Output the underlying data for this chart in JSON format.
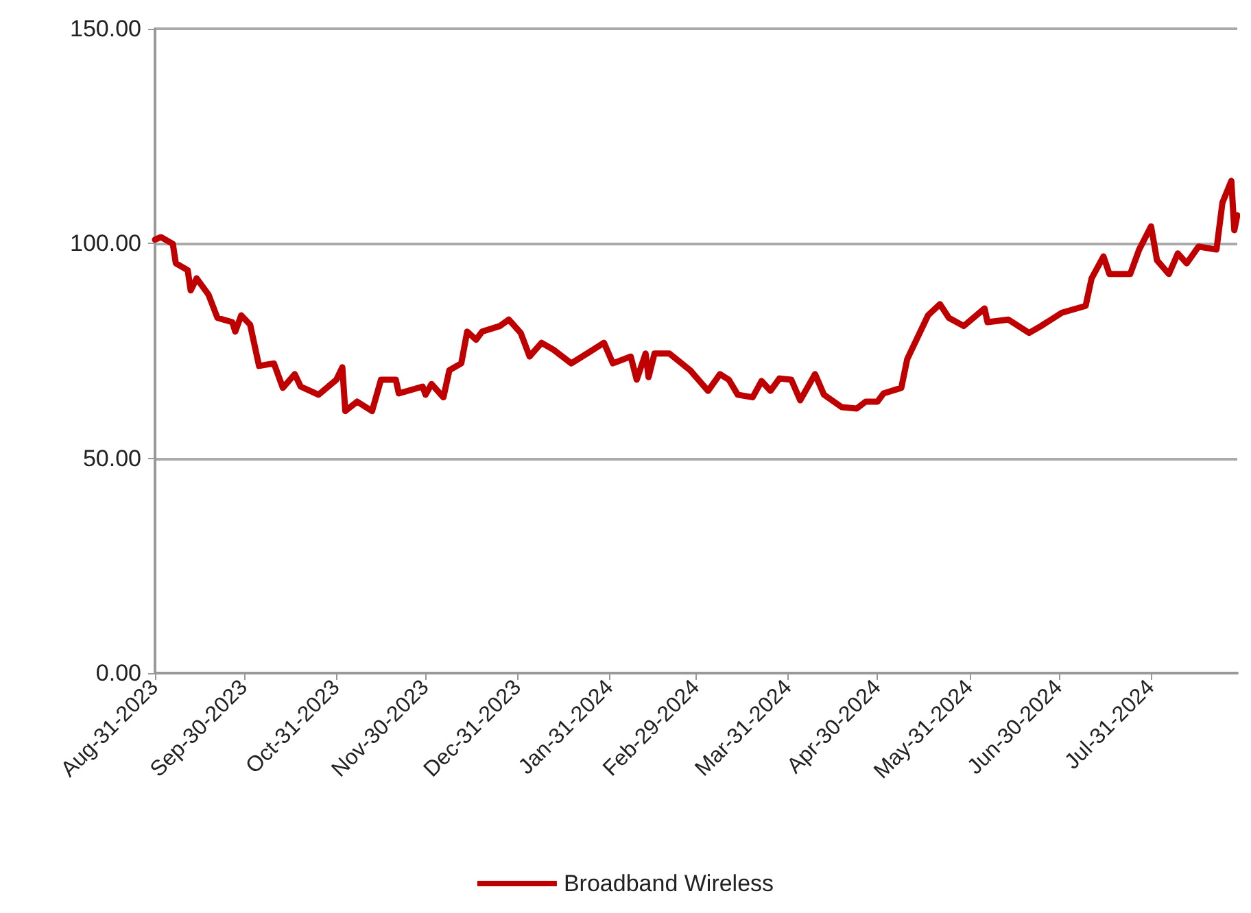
{
  "chart_data": {
    "type": "line",
    "series": [
      {
        "name": "Broadband Wireless",
        "color": "#c00000",
        "x": [
          "2023-08-31",
          "2023-09-02",
          "2023-09-06",
          "2023-09-07",
          "2023-09-11",
          "2023-09-12",
          "2023-09-14",
          "2023-09-18",
          "2023-09-21",
          "2023-09-26",
          "2023-09-27",
          "2023-09-29",
          "2023-10-02",
          "2023-10-05",
          "2023-10-10",
          "2023-10-13",
          "2023-10-17",
          "2023-10-19",
          "2023-10-25",
          "2023-10-31",
          "2023-11-02",
          "2023-11-03",
          "2023-11-07",
          "2023-11-12",
          "2023-11-15",
          "2023-11-20",
          "2023-11-21",
          "2023-11-29",
          "2023-11-30",
          "2023-12-02",
          "2023-12-06",
          "2023-12-08",
          "2023-12-12",
          "2023-12-14",
          "2023-12-17",
          "2023-12-19",
          "2023-12-25",
          "2023-12-28",
          "2024-01-01",
          "2024-01-04",
          "2024-01-08",
          "2024-01-12",
          "2024-01-18",
          "2024-01-24",
          "2024-01-29",
          "2024-02-01",
          "2024-02-07",
          "2024-02-09",
          "2024-02-12",
          "2024-02-13",
          "2024-02-15",
          "2024-02-20",
          "2024-02-27",
          "2024-02-29",
          "2024-03-04",
          "2024-03-08",
          "2024-03-11",
          "2024-03-14",
          "2024-03-19",
          "2024-03-22",
          "2024-03-25",
          "2024-03-28",
          "2024-04-01",
          "2024-04-04",
          "2024-04-09",
          "2024-04-12",
          "2024-04-18",
          "2024-04-23",
          "2024-04-26",
          "2024-04-30",
          "2024-05-02",
          "2024-05-08",
          "2024-05-10",
          "2024-05-17",
          "2024-05-21",
          "2024-05-24",
          "2024-05-29",
          "2024-06-05",
          "2024-06-06",
          "2024-06-13",
          "2024-06-20",
          "2024-06-24",
          "2024-07-01",
          "2024-07-09",
          "2024-07-11",
          "2024-07-15",
          "2024-07-17",
          "2024-07-24",
          "2024-07-27",
          "2024-07-31",
          "2024-08-02",
          "2024-08-06",
          "2024-08-09",
          "2024-08-12",
          "2024-08-16",
          "2024-08-22",
          "2024-08-24",
          "2024-08-27",
          "2024-08-28",
          "2024-08-29"
        ],
        "values": [
          100.9,
          101.5,
          99.9,
          95.4,
          93.8,
          89.1,
          91.9,
          88.1,
          82.7,
          81.7,
          79.5,
          83.3,
          81.1,
          71.5,
          72.1,
          66.4,
          69.6,
          66.7,
          64.8,
          68.3,
          71.2,
          61.0,
          63.2,
          61.0,
          68.3,
          68.3,
          65.1,
          66.7,
          64.8,
          67.3,
          64.2,
          70.5,
          72.1,
          79.5,
          77.6,
          79.5,
          80.8,
          82.3,
          79.2,
          73.7,
          76.9,
          75.3,
          72.1,
          74.7,
          76.9,
          72.1,
          73.7,
          68.3,
          74.4,
          68.9,
          74.4,
          74.4,
          70.5,
          68.9,
          65.7,
          69.6,
          68.3,
          64.8,
          64.2,
          68.0,
          65.7,
          68.6,
          68.3,
          63.5,
          69.6,
          64.8,
          61.9,
          61.6,
          63.2,
          63.2,
          65.1,
          66.4,
          73.1,
          83.3,
          85.9,
          82.7,
          80.8,
          84.9,
          81.7,
          82.3,
          79.2,
          80.8,
          83.9,
          85.5,
          91.9,
          97.0,
          92.9,
          92.9,
          98.6,
          104.0,
          96.1,
          92.9,
          97.7,
          95.4,
          99.3,
          98.6,
          109.5,
          114.6,
          103.1,
          106.6
        ]
      }
    ],
    "xlim": [
      "2023-08-31",
      "2024-08-29"
    ],
    "xticks": [
      {
        "value": "2023-08-31",
        "label": "Aug-31-2023"
      },
      {
        "value": "2023-09-30",
        "label": "Sep-30-2023"
      },
      {
        "value": "2023-10-31",
        "label": "Oct-31-2023"
      },
      {
        "value": "2023-11-30",
        "label": "Nov-30-2023"
      },
      {
        "value": "2023-12-31",
        "label": "Dec-31-2023"
      },
      {
        "value": "2024-01-31",
        "label": "Jan-31-2024"
      },
      {
        "value": "2024-02-29",
        "label": "Feb-29-2024"
      },
      {
        "value": "2024-03-31",
        "label": "Mar-31-2024"
      },
      {
        "value": "2024-04-30",
        "label": "Apr-30-2024"
      },
      {
        "value": "2024-05-31",
        "label": "May-31-2024"
      },
      {
        "value": "2024-06-30",
        "label": "Jun-30-2024"
      },
      {
        "value": "2024-07-31",
        "label": "Jul-31-2024"
      }
    ],
    "ylim": [
      0,
      150
    ],
    "yticks": [
      {
        "value": 0,
        "label": "0.00"
      },
      {
        "value": 50,
        "label": "50.00"
      },
      {
        "value": 100,
        "label": "100.00"
      },
      {
        "value": 150,
        "label": "150.00"
      }
    ],
    "grid": "y",
    "legend": "bottom"
  }
}
